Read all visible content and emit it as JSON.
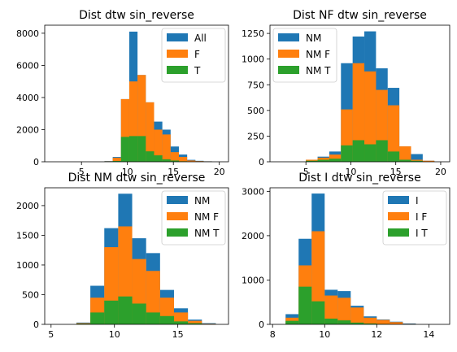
{
  "chart_data": [
    {
      "type": "bar",
      "title": "Dist dtw sin_reverse",
      "xlim": [
        1,
        21
      ],
      "ylim": [
        0,
        8500
      ],
      "xticks": [
        5,
        10,
        15,
        20
      ],
      "yticks": [
        0,
        2000,
        4000,
        6000,
        8000
      ],
      "legend_position": "top-right",
      "series": [
        {
          "name": "All",
          "color": "#1f77b4",
          "bins": [
            [
              7.5,
              8.4,
              40
            ],
            [
              8.4,
              9.3,
              300
            ],
            [
              9.3,
              10.2,
              3900
            ],
            [
              10.2,
              11.1,
              8100
            ],
            [
              11.1,
              12.0,
              5400
            ],
            [
              12.0,
              12.9,
              3700
            ],
            [
              12.9,
              13.8,
              2500
            ],
            [
              13.8,
              14.7,
              2000
            ],
            [
              14.7,
              15.6,
              950
            ],
            [
              15.6,
              16.5,
              450
            ],
            [
              16.5,
              17.4,
              120
            ],
            [
              17.4,
              18.3,
              60
            ],
            [
              18.3,
              19.2,
              30
            ]
          ]
        },
        {
          "name": "F",
          "color": "#ff7f0e",
          "bins": [
            [
              7.5,
              8.4,
              30
            ],
            [
              8.4,
              9.3,
              250
            ],
            [
              9.3,
              10.2,
              3900
            ],
            [
              10.2,
              11.1,
              5000
            ],
            [
              11.1,
              12.0,
              5400
            ],
            [
              12.0,
              12.9,
              3700
            ],
            [
              12.9,
              13.8,
              2000
            ],
            [
              13.8,
              14.7,
              1700
            ],
            [
              14.7,
              15.6,
              600
            ],
            [
              15.6,
              16.5,
              300
            ],
            [
              16.5,
              17.4,
              80
            ],
            [
              17.4,
              18.3,
              40
            ],
            [
              18.3,
              19.2,
              20
            ]
          ]
        },
        {
          "name": "T",
          "color": "#2ca02c",
          "bins": [
            [
              7.5,
              8.4,
              10
            ],
            [
              8.4,
              9.3,
              50
            ],
            [
              9.3,
              10.2,
              1550
            ],
            [
              10.2,
              11.1,
              1600
            ],
            [
              11.1,
              12.0,
              1600
            ],
            [
              12.0,
              12.9,
              650
            ],
            [
              12.9,
              13.8,
              400
            ],
            [
              13.8,
              14.7,
              150
            ],
            [
              14.7,
              15.6,
              80
            ],
            [
              15.6,
              16.5,
              30
            ]
          ]
        }
      ]
    },
    {
      "type": "bar",
      "title": "Dist NF dtw sin_reverse",
      "xlim": [
        1,
        21
      ],
      "ylim": [
        0,
        1330
      ],
      "xticks": [
        5,
        10,
        15,
        20
      ],
      "yticks": [
        0,
        250,
        500,
        750,
        1000,
        1250
      ],
      "legend_position": "top-left",
      "series": [
        {
          "name": "NM",
          "color": "#1f77b4",
          "bins": [
            [
              5.0,
              6.3,
              20
            ],
            [
              6.3,
              7.6,
              50
            ],
            [
              7.6,
              8.9,
              100
            ],
            [
              8.9,
              10.2,
              960
            ],
            [
              10.2,
              11.5,
              1220
            ],
            [
              11.5,
              12.8,
              1270
            ],
            [
              12.8,
              14.1,
              910
            ],
            [
              14.1,
              15.4,
              720
            ],
            [
              15.4,
              16.7,
              150
            ],
            [
              16.7,
              18.0,
              75
            ],
            [
              18.0,
              19.3,
              10
            ]
          ]
        },
        {
          "name": "NM F",
          "color": "#ff7f0e",
          "bins": [
            [
              5.0,
              6.3,
              20
            ],
            [
              6.3,
              7.6,
              40
            ],
            [
              7.6,
              8.9,
              70
            ],
            [
              8.9,
              10.2,
              510
            ],
            [
              10.2,
              11.5,
              960
            ],
            [
              11.5,
              12.8,
              880
            ],
            [
              12.8,
              14.1,
              700
            ],
            [
              14.1,
              15.4,
              550
            ],
            [
              15.4,
              16.7,
              150
            ],
            [
              16.7,
              18.0,
              20
            ],
            [
              18.0,
              19.3,
              10
            ]
          ]
        },
        {
          "name": "NM T",
          "color": "#2ca02c",
          "bins": [
            [
              5.0,
              6.3,
              10
            ],
            [
              6.3,
              7.6,
              20
            ],
            [
              7.6,
              8.9,
              30
            ],
            [
              8.9,
              10.2,
              160
            ],
            [
              10.2,
              11.5,
              210
            ],
            [
              11.5,
              12.8,
              170
            ],
            [
              12.8,
              14.1,
              210
            ],
            [
              14.1,
              15.4,
              100
            ],
            [
              15.4,
              16.7,
              20
            ],
            [
              16.7,
              18.0,
              10
            ]
          ]
        }
      ]
    },
    {
      "type": "bar",
      "title": "Dist NM dtw sin_reverse",
      "xlim": [
        4.5,
        19
      ],
      "ylim": [
        0,
        2300
      ],
      "xticks": [
        5,
        10,
        15
      ],
      "yticks": [
        0,
        500,
        1000,
        1500,
        2000
      ],
      "legend_position": "top-right",
      "series": [
        {
          "name": "NM",
          "color": "#1f77b4",
          "bins": [
            [
              7.0,
              8.1,
              30
            ],
            [
              8.1,
              9.2,
              650
            ],
            [
              9.2,
              10.3,
              1620
            ],
            [
              10.3,
              11.4,
              2200
            ],
            [
              11.4,
              12.5,
              1450
            ],
            [
              12.5,
              13.6,
              1200
            ],
            [
              13.6,
              14.7,
              580
            ],
            [
              14.7,
              15.8,
              270
            ],
            [
              15.8,
              16.9,
              80
            ],
            [
              16.9,
              18.0,
              20
            ]
          ]
        },
        {
          "name": "NM F",
          "color": "#ff7f0e",
          "bins": [
            [
              7.0,
              8.1,
              20
            ],
            [
              8.1,
              9.2,
              450
            ],
            [
              9.2,
              10.3,
              1300
            ],
            [
              10.3,
              11.4,
              1650
            ],
            [
              11.4,
              12.5,
              1100
            ],
            [
              12.5,
              13.6,
              900
            ],
            [
              13.6,
              14.7,
              450
            ],
            [
              14.7,
              15.8,
              200
            ],
            [
              15.8,
              16.9,
              60
            ],
            [
              16.9,
              18.0,
              10
            ]
          ]
        },
        {
          "name": "NM T",
          "color": "#2ca02c",
          "bins": [
            [
              7.0,
              8.1,
              10
            ],
            [
              8.1,
              9.2,
              200
            ],
            [
              9.2,
              10.3,
              400
            ],
            [
              10.3,
              11.4,
              470
            ],
            [
              11.4,
              12.5,
              350
            ],
            [
              12.5,
              13.6,
              200
            ],
            [
              13.6,
              14.7,
              140
            ],
            [
              14.7,
              15.8,
              50
            ],
            [
              15.8,
              16.9,
              20
            ]
          ]
        }
      ]
    },
    {
      "type": "bar",
      "title": "Dist I dtw sin_reverse",
      "xlim": [
        7.9,
        14.8
      ],
      "ylim": [
        0,
        3080
      ],
      "xticks": [
        8,
        10,
        12,
        14
      ],
      "yticks": [
        0,
        1000,
        2000,
        3000
      ],
      "legend_position": "top-right",
      "series": [
        {
          "name": "I",
          "color": "#1f77b4",
          "bins": [
            [
              8.5,
              9.0,
              230
            ],
            [
              9.0,
              9.5,
              1930
            ],
            [
              9.5,
              10.0,
              2950
            ],
            [
              10.0,
              10.5,
              780
            ],
            [
              10.5,
              11.0,
              750
            ],
            [
              11.0,
              11.5,
              420
            ],
            [
              11.5,
              12.0,
              180
            ],
            [
              12.0,
              12.5,
              110
            ],
            [
              12.5,
              13.0,
              60
            ],
            [
              13.0,
              13.5,
              20
            ]
          ]
        },
        {
          "name": "I F",
          "color": "#ff7f0e",
          "bins": [
            [
              8.5,
              9.0,
              150
            ],
            [
              9.0,
              9.5,
              1330
            ],
            [
              9.5,
              10.0,
              2100
            ],
            [
              10.0,
              10.5,
              650
            ],
            [
              10.5,
              11.0,
              600
            ],
            [
              11.0,
              11.5,
              380
            ],
            [
              11.5,
              12.0,
              150
            ],
            [
              12.0,
              12.5,
              100
            ],
            [
              12.5,
              13.0,
              50
            ],
            [
              13.0,
              13.5,
              10
            ]
          ]
        },
        {
          "name": "I T",
          "color": "#2ca02c",
          "bins": [
            [
              8.5,
              9.0,
              80
            ],
            [
              9.0,
              9.5,
              850
            ],
            [
              9.5,
              10.0,
              520
            ],
            [
              10.0,
              10.5,
              130
            ],
            [
              10.5,
              11.0,
              90
            ],
            [
              11.0,
              11.5,
              40
            ],
            [
              11.5,
              12.0,
              20
            ],
            [
              12.0,
              12.5,
              10
            ]
          ]
        }
      ]
    }
  ]
}
